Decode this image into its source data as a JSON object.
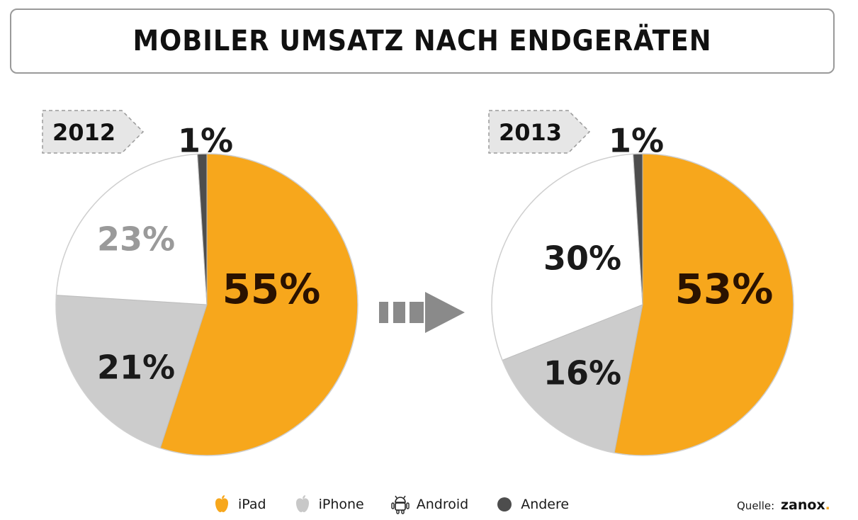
{
  "title": "MOBILER UMSATZ NACH ENDGERÄTEN",
  "colors": {
    "ipad": "#f7a71c",
    "iphone": "#cccccc",
    "android": "#ffffff",
    "andere": "#4d4d4d",
    "year_tag": "#e6e6e6",
    "arrow": "#8a8a8a"
  },
  "legend": [
    {
      "label": "iPad",
      "icon": "apple-icon-orange"
    },
    {
      "label": "iPhone",
      "icon": "apple-icon-grey"
    },
    {
      "label": "Android",
      "icon": "android-icon"
    },
    {
      "label": "Andere",
      "icon": "dot-icon-dark"
    }
  ],
  "source": {
    "label": "Quelle:",
    "brand": "zanox",
    "brand_dot": "."
  },
  "chart_data": [
    {
      "type": "pie",
      "year": "2012",
      "categories": [
        "iPad",
        "iPhone",
        "Android",
        "Andere"
      ],
      "values": [
        55,
        21,
        23,
        1
      ],
      "labels": [
        "55%",
        "21%",
        "23%",
        "1%"
      ]
    },
    {
      "type": "pie",
      "year": "2013",
      "categories": [
        "iPad",
        "iPhone",
        "Android",
        "Andere"
      ],
      "values": [
        53,
        16,
        30,
        1
      ],
      "labels": [
        "53%",
        "16%",
        "30%",
        "1%"
      ]
    }
  ]
}
